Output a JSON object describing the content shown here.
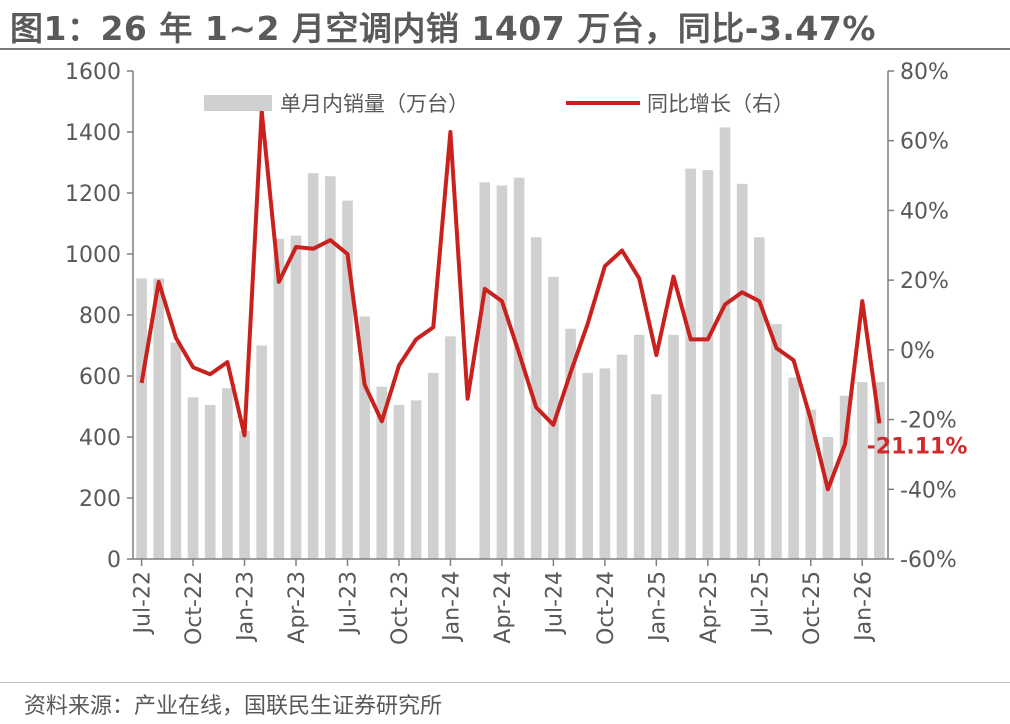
{
  "title": "图1：26 年 1~2 月空调内销 1407 万台，同比-3.47%",
  "source": "资料来源：产业在线，国联民生证券研究所",
  "colors": {
    "bar": "#d0d0d0",
    "line": "#c9211e",
    "annotation": "#d12a2a",
    "axis": "#595959"
  },
  "chart_data": {
    "type": "bar",
    "categories": [
      "Jul-22",
      "Aug-22",
      "Sep-22",
      "Oct-22",
      "Nov-22",
      "Dec-22",
      "Jan-23",
      "Feb-23",
      "Mar-23",
      "Apr-23",
      "May-23",
      "Jun-23",
      "Jul-23",
      "Aug-23",
      "Sep-23",
      "Oct-23",
      "Nov-23",
      "Dec-23",
      "Jan-24",
      "Feb-24",
      "Mar-24",
      "Apr-24",
      "May-24",
      "Jun-24",
      "Jul-24",
      "Aug-24",
      "Sep-24",
      "Oct-24",
      "Nov-24",
      "Dec-24",
      "Jan-25",
      "Feb-25",
      "Mar-25",
      "Apr-25",
      "May-25",
      "Jun-25",
      "Jul-25",
      "Aug-25",
      "Sep-25",
      "Oct-25",
      "Nov-25",
      "Dec-25",
      "Jan-26",
      "Feb-26"
    ],
    "x_tick_labels": [
      "Jul-22",
      "Oct-22",
      "Jan-23",
      "Apr-23",
      "Jul-23",
      "Oct-23",
      "Jan-24",
      "Apr-24",
      "Jul-24",
      "Oct-24",
      "Jan-25",
      "Apr-25",
      "Jul-25",
      "Oct-25",
      "Jan-26"
    ],
    "series": [
      {
        "name": "单月内销量（万台）",
        "type": "bar",
        "axis": "left",
        "values": [
          920,
          920,
          710,
          530,
          505,
          560,
          420,
          700,
          1050,
          1060,
          1265,
          1255,
          1175,
          795,
          565,
          505,
          520,
          610,
          730,
          1,
          1235,
          1225,
          1250,
          1055,
          925,
          755,
          610,
          625,
          670,
          735,
          540,
          735,
          1280,
          1275,
          1415,
          1230,
          1055,
          770,
          595,
          490,
          400,
          535,
          580,
          580
        ]
      },
      {
        "name": "同比增长（右）",
        "type": "line",
        "axis": "right",
        "values": [
          -9.5,
          19.5,
          3.5,
          -5,
          -7,
          -3.5,
          -24.5,
          68.5,
          19.5,
          29.5,
          29,
          31.5,
          27.5,
          -10,
          -20.5,
          -4.5,
          3,
          6.5,
          62.5,
          -14,
          17.5,
          14,
          -1,
          -16.5,
          -21.5,
          -6.5,
          7.5,
          24,
          28.5,
          20.5,
          -1.5,
          21,
          3,
          3,
          13,
          16.5,
          14,
          0.5,
          -3,
          -20,
          -40,
          -27,
          14,
          -21.11
        ]
      }
    ],
    "y_left": {
      "ylim": [
        0,
        1600
      ],
      "ticks": [
        "0",
        "200",
        "400",
        "600",
        "800",
        "1000",
        "1200",
        "1400",
        "1600"
      ]
    },
    "y_right": {
      "ylim": [
        -60,
        80
      ],
      "ticks": [
        "-60%",
        "-40%",
        "-20%",
        "0%",
        "20%",
        "40%",
        "60%",
        "80%"
      ]
    },
    "legend": {
      "placement": "top"
    },
    "annotation": {
      "text": "-21.11%",
      "target": "Feb-26"
    },
    "grid": false
  }
}
